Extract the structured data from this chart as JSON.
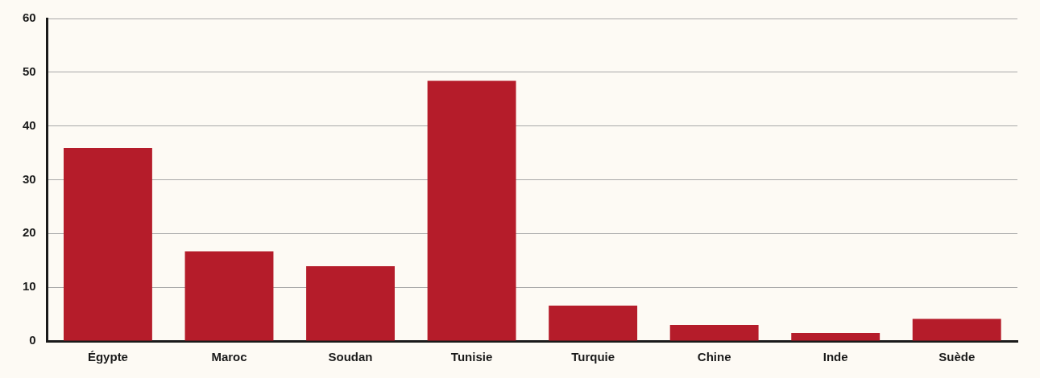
{
  "chart_data": {
    "type": "bar",
    "categories": [
      "Égypte",
      "Maroc",
      "Soudan",
      "Tunisie",
      "Turquie",
      "Chine",
      "Inde",
      "Suède"
    ],
    "values": [
      35.9,
      16.7,
      13.9,
      48.4,
      6.6,
      3.0,
      1.5,
      4.1
    ],
    "color": "#b51c2a",
    "ylim": [
      0,
      60
    ],
    "yticks": [
      0,
      10,
      20,
      30,
      40,
      50,
      60
    ],
    "grid": "y",
    "legend": false
  }
}
